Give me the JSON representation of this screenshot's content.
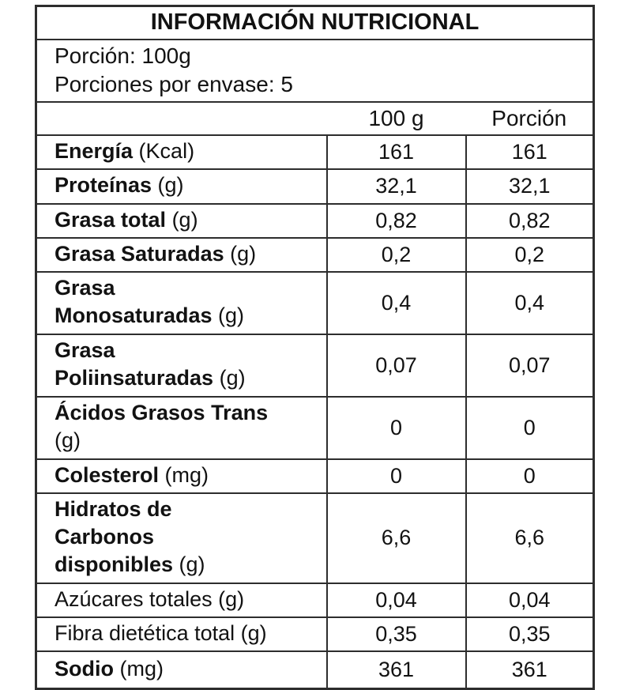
{
  "label": {
    "title": "INFORMACIÓN NUTRICIONAL",
    "serving": {
      "line1": "Porción: 100g",
      "line2": "Porciones por envase: 5"
    },
    "columns": {
      "per100": "100 g",
      "portion": "Porción"
    },
    "rows": [
      {
        "name": "Energía",
        "unit": " (Kcal)",
        "per100": "161",
        "portion": "161"
      },
      {
        "name": "Proteínas",
        "unit": " (g)",
        "per100": "32,1",
        "portion": "32,1"
      },
      {
        "name": "Grasa total",
        "unit": " (g)",
        "per100": "0,82",
        "portion": "0,82"
      },
      {
        "name": "Grasa Saturadas",
        "unit": " (g)",
        "per100": "0,2",
        "portion": "0,2"
      },
      {
        "name": "Grasa\nMonosaturadas",
        "unit": " (g)",
        "per100": "0,4",
        "portion": "0,4"
      },
      {
        "name": "Grasa\nPoliinsaturadas",
        "unit": " (g)",
        "per100": "0,07",
        "portion": "0,07"
      },
      {
        "name": "Ácidos Grasos Trans\n",
        "unit": "(g)",
        "per100": "0",
        "portion": "0"
      },
      {
        "name": "Colesterol",
        "unit": " (mg)",
        "per100": "0",
        "portion": "0"
      },
      {
        "name": "Hidratos de\nCarbonos\ndisponibles",
        "unit": " (g)",
        "per100": "6,6",
        "portion": "6,6"
      },
      {
        "name": "Azúcares totales",
        "unit": " (g)",
        "per100": "0,04",
        "portion": "0,04"
      },
      {
        "name": "Fibra dietética total",
        "unit": " (g)",
        "per100": "0,35",
        "portion": "0,35"
      },
      {
        "name": "Sodio",
        "unit": " (mg)",
        "per100": "361",
        "portion": "361"
      }
    ]
  }
}
